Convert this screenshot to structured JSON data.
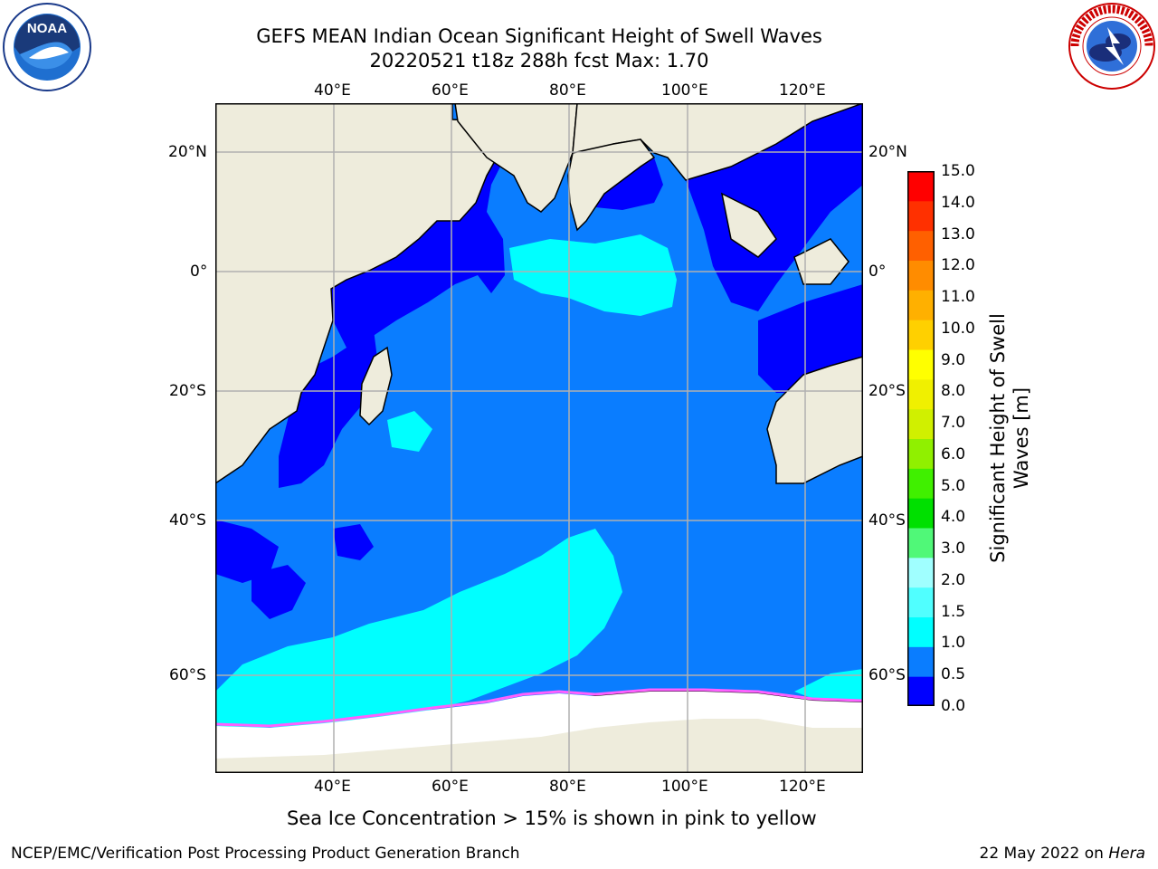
{
  "title": {
    "line1": "GEFS MEAN Indian Ocean Significant Height of Swell Waves",
    "line2": "20220521 t18z 288h fcst   Max: 1.70"
  },
  "logos": {
    "left": {
      "name": "noaa-logo",
      "text": "NOAA"
    },
    "right": {
      "name": "nws-logo",
      "text": "NATIONAL WEATHER SERVICE"
    }
  },
  "map": {
    "lon_ticks_top": [
      "40°E",
      "60°E",
      "80°E",
      "100°E",
      "120°E"
    ],
    "lon_ticks_bottom": [
      "40°E",
      "60°E",
      "80°E",
      "100°E",
      "120°E"
    ],
    "lat_ticks_left": [
      "20°N",
      "0°",
      "20°S",
      "40°S",
      "60°S"
    ],
    "lat_ticks_right": [
      "20°N",
      "0°",
      "20°S",
      "40°S",
      "60°S"
    ],
    "colors": {
      "ocean_0_05": "#0000ff",
      "ocean_05_10": "#0a7dff",
      "ocean_10_15": "#00ffff",
      "land": "#eeecdc",
      "ice": "#ffffff",
      "ice_edge": "#ff60ff",
      "grid": "#b0b0b0"
    }
  },
  "colorbar": {
    "label": "Significant Height of Swell Waves [m]",
    "ticks": [
      "15.0",
      "14.0",
      "13.0",
      "12.0",
      "11.0",
      "10.0",
      "9.0",
      "8.0",
      "7.0",
      "6.0",
      "5.0",
      "4.0",
      "3.0",
      "2.0",
      "1.5",
      "1.0",
      "0.5",
      "0.0"
    ],
    "colors": [
      "#0000ff",
      "#0a7dff",
      "#00ffff",
      "#50ffff",
      "#a0ffff",
      "#50f878",
      "#00e000",
      "#40f000",
      "#90f000",
      "#d0f000",
      "#f0f000",
      "#ffff00",
      "#ffd000",
      "#ffb000",
      "#ff8c00",
      "#ff6000",
      "#ff3000",
      "#ff0000"
    ]
  },
  "caption": "Sea Ice Concentration > 15% is shown in pink to yellow",
  "footer": {
    "left": "NCEP/EMC/Verification Post Processing Product Generation Branch",
    "right_prefix": "22 May 2022 on ",
    "right_host": "Hera"
  }
}
